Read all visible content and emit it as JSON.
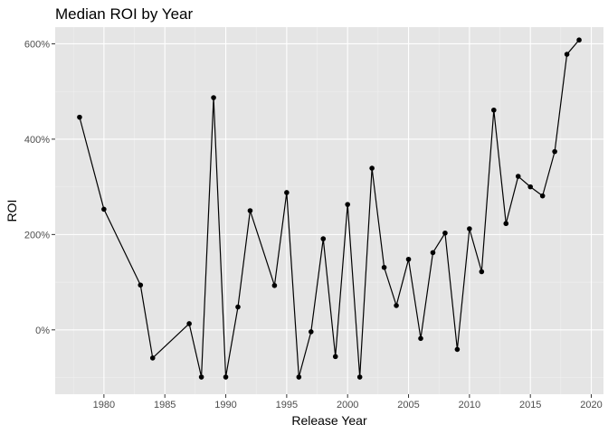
{
  "chart_data": {
    "type": "line",
    "title": "Median ROI by Year",
    "xlabel": "Release Year",
    "ylabel": "ROI",
    "xlim": [
      1976,
      2021
    ],
    "ylim": [
      -135,
      635
    ],
    "x_ticks": [
      1980,
      1985,
      1990,
      1995,
      2000,
      2005,
      2010,
      2015,
      2020
    ],
    "y_ticks": [
      0,
      200,
      400,
      600
    ],
    "y_tick_labels": [
      "0%",
      "200%",
      "400%",
      "600%"
    ],
    "grid": true,
    "legend": "none",
    "colors": {
      "panel": "#e5e5e5",
      "grid_major": "#ffffff",
      "grid_minor": "#f0f0f0",
      "series": "#000000",
      "tick": "#333333"
    },
    "series": [
      {
        "x": [
          1978,
          1980,
          1983,
          1984,
          1987,
          1988,
          1989,
          1990,
          1991,
          1992,
          1994,
          1995,
          1996,
          1997,
          1998,
          1999,
          2000,
          2001,
          2002,
          2003,
          2004,
          2005,
          2006,
          2007,
          2008,
          2009,
          2010,
          2011,
          2012,
          2013,
          2014,
          2015,
          2016,
          2017,
          2018,
          2019
        ],
        "values": [
          446,
          253,
          94,
          -59,
          13,
          -99,
          487,
          -99,
          48,
          250,
          93,
          288,
          -99,
          -4,
          191,
          -56,
          263,
          -99,
          339,
          131,
          51,
          148,
          -18,
          162,
          203,
          -41,
          212,
          122,
          461,
          223,
          322,
          300,
          281,
          374,
          578,
          608
        ]
      }
    ]
  }
}
